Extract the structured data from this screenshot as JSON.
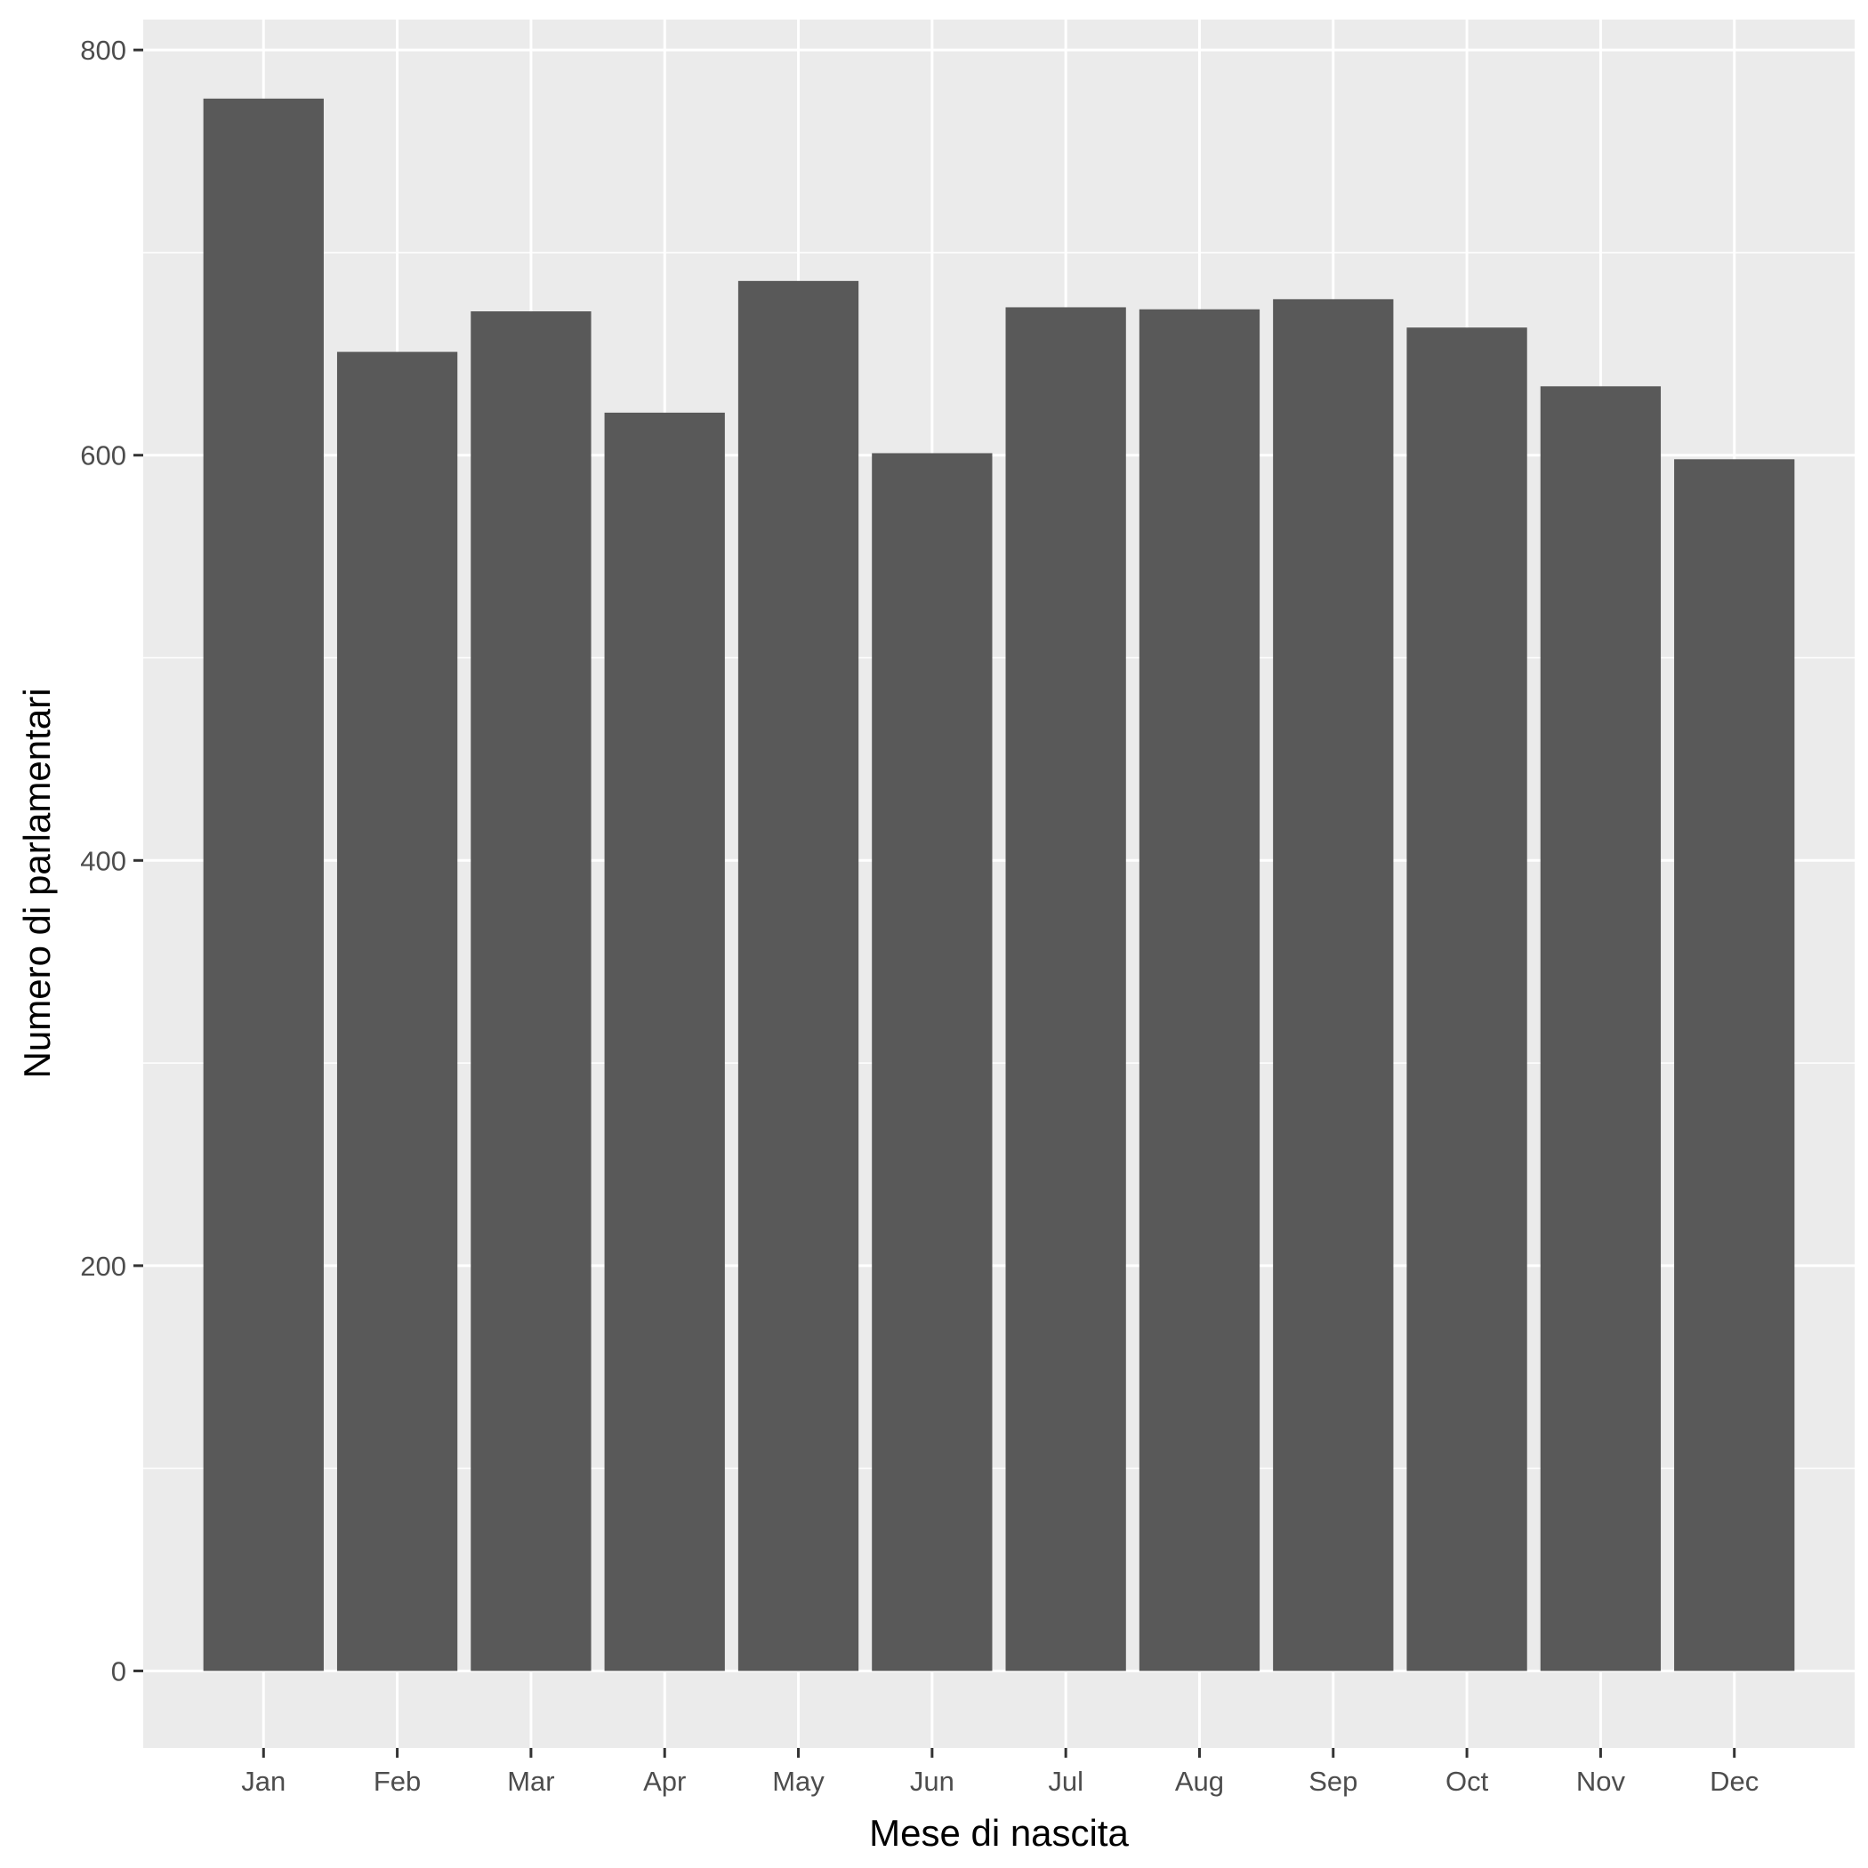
{
  "chart_data": {
    "type": "bar",
    "title": "",
    "xlabel": "Mese di nascita",
    "ylabel": "Numero di parlamentari",
    "categories": [
      "Jan",
      "Feb",
      "Mar",
      "Apr",
      "May",
      "Jun",
      "Jul",
      "Aug",
      "Sep",
      "Oct",
      "Nov",
      "Dec"
    ],
    "values": [
      776,
      651,
      671,
      621,
      686,
      601,
      673,
      672,
      677,
      663,
      634,
      598
    ],
    "ylim": [
      -38,
      815
    ],
    "yticks": [
      0,
      200,
      400,
      600,
      800
    ],
    "grid": true,
    "legend": "none",
    "colors": {
      "panel": "#ebebeb",
      "bar": "#595959",
      "grid": "#ffffff",
      "tick_text": "#4d4d4d",
      "tick_mark": "#333333"
    }
  }
}
